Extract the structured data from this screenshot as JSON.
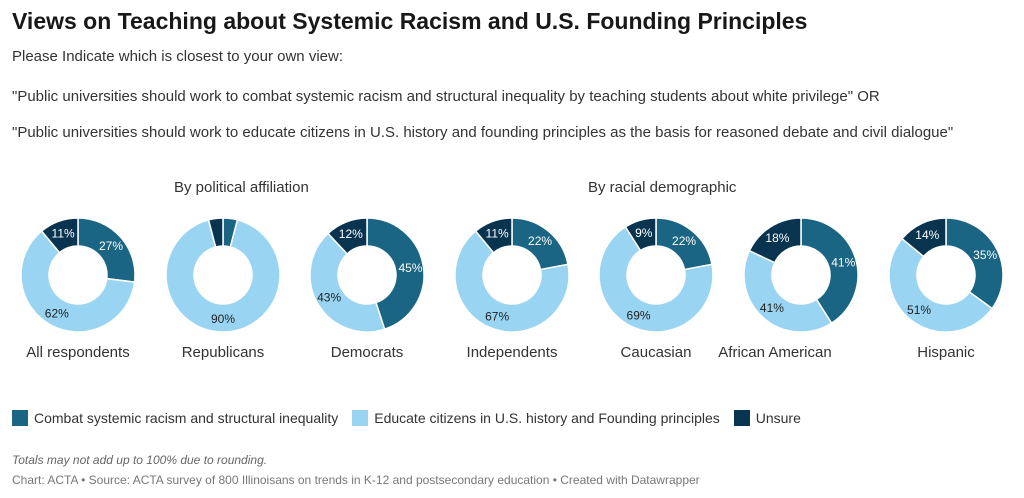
{
  "title": "Views on Teaching about Systemic Racism and U.S. Founding Principles",
  "intro": {
    "line1": "Please Indicate which is closest to your own view:",
    "line2": "\"Public universities should work to combat systemic racism and structural inequality by teaching students about white privilege\" OR",
    "line3": "\"Public universities should work to educate citizens in U.S. history and founding principles as the basis for reasoned debate and civil dialogue\""
  },
  "group_headers": [
    "By political affiliation",
    "By racial demographic"
  ],
  "colors": {
    "combat": "#1a6584",
    "educate": "#99d5f2",
    "unsure": "#08344f"
  },
  "chart_data": {
    "type": "pie",
    "style": "donut",
    "series_names": [
      "Combat systemic racism and structural inequality",
      "Educate citizens in U.S. history and Founding principles",
      "Unsure"
    ],
    "charts": [
      {
        "label": "All respondents",
        "values": [
          27,
          62,
          11
        ],
        "value_labels": [
          "27%",
          "62%",
          "11%"
        ]
      },
      {
        "label": "Republicans",
        "values": [
          4,
          90,
          4
        ],
        "value_labels": [
          "",
          "90%",
          ""
        ]
      },
      {
        "label": "Democrats",
        "values": [
          45,
          43,
          12
        ],
        "value_labels": [
          "45%",
          "43%",
          "12%"
        ]
      },
      {
        "label": "Independents",
        "values": [
          22,
          67,
          11
        ],
        "value_labels": [
          "22%",
          "67%",
          "11%"
        ]
      },
      {
        "label": "Caucasian",
        "values": [
          22,
          69,
          9
        ],
        "value_labels": [
          "22%",
          "69%",
          "9%"
        ]
      },
      {
        "label": "African American",
        "values": [
          41,
          41,
          18
        ],
        "value_labels": [
          "41%",
          "41%",
          "18%"
        ]
      },
      {
        "label": "Hispanic",
        "values": [
          35,
          51,
          14
        ],
        "value_labels": [
          "35%",
          "51%",
          "14%"
        ]
      }
    ]
  },
  "legend": [
    {
      "label": "Combat systemic racism and structural inequality",
      "color": "#1a6584"
    },
    {
      "label": "Educate citizens in U.S. history and Founding principles",
      "color": "#99d5f2"
    },
    {
      "label": "Unsure",
      "color": "#08344f"
    }
  ],
  "footer": {
    "note": "Totals may not add up to 100% due to rounding.",
    "source": "Chart: ACTA • Source: ACTA survey of 800 Illinoisans on trends in K-12 and postsecondary education • Created with Datawrapper"
  }
}
